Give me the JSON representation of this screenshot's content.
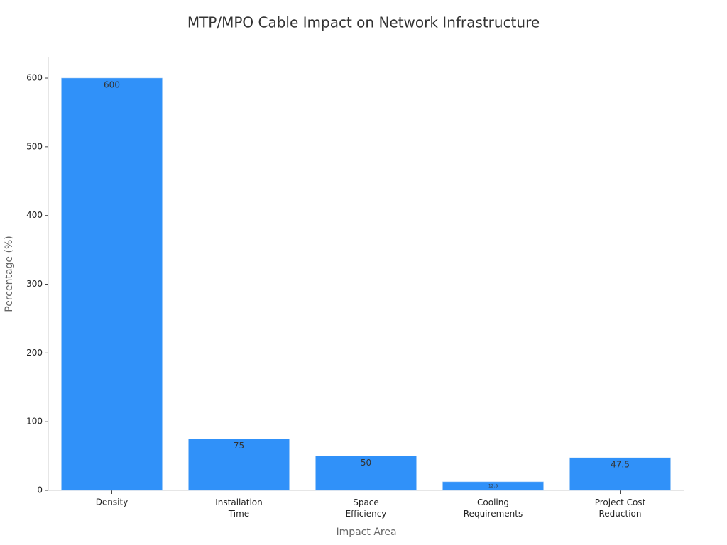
{
  "chart_data": {
    "type": "bar",
    "title": "MTP/MPO Cable Impact on Network Infrastructure",
    "x_label": "Impact Area",
    "y_label": "Percentage (%)",
    "categories": [
      "Density",
      "Installation\nTime",
      "Space\nEfficiency",
      "Cooling\nRequirements",
      "Project Cost\nReduction"
    ],
    "values": [
      600,
      75,
      50,
      12.5,
      47.5
    ],
    "color": "#3091f9",
    "ylim": [
      0,
      631
    ],
    "yticks": [
      0,
      100,
      200,
      300,
      400,
      500,
      600
    ],
    "grid": false
  }
}
